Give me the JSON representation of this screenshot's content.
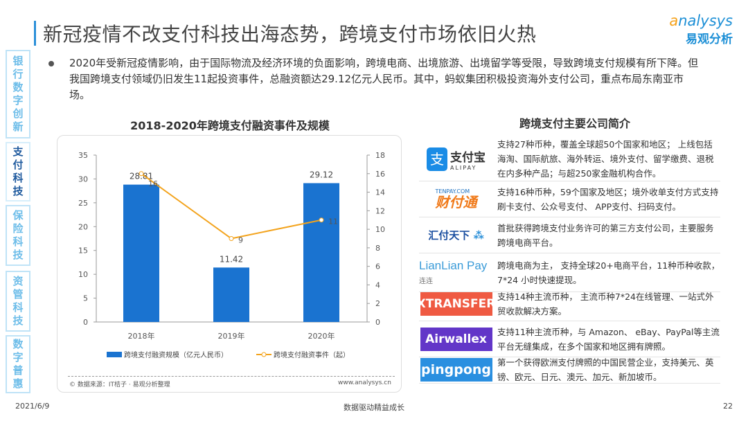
{
  "title": "新冠疫情不改支付科技出海态势，跨境支付市场依旧火热",
  "logo": {
    "en": "nalysys",
    "en_a": "a",
    "cn": "易观分析"
  },
  "sidebar": [
    {
      "label": "银行数字创新",
      "active": false
    },
    {
      "label": "支付科技",
      "active": true
    },
    {
      "label": "保险科技",
      "active": false
    },
    {
      "label": "资管科技",
      "active": false
    },
    {
      "label": "数字普惠",
      "active": false
    }
  ],
  "bullet": "2020年受新冠疫情影响，由于国际物流及经济环境的负面影响，跨境电商、出境旅游、出境留学等受限，导致跨境支付规模有所下降。但我国跨境支付领域仍旧发生11起投资事件，总融资额达29.12亿元人民币。其中，蚂蚁集团积极投资海外支付公司，重点布局东南亚市场。",
  "chart_data": {
    "type": "bar+line",
    "title": "2018-2020年跨境支付融资事件及规模",
    "categories": [
      "2018年",
      "2019年",
      "2020年"
    ],
    "series": [
      {
        "name": "跨境支付融资规模（亿元人民币）",
        "type": "bar",
        "axis": "left",
        "values": [
          28.81,
          11.42,
          29.12
        ],
        "labels": [
          "28.81",
          "11.42",
          "29.12"
        ],
        "color": "#1a73d0"
      },
      {
        "name": "跨境支付融资事件（起）",
        "type": "line",
        "axis": "right",
        "values": [
          16,
          9,
          11
        ],
        "labels": [
          "16",
          "9",
          "11"
        ],
        "color": "#f3a31c"
      }
    ],
    "ylim_left": [
      0,
      35
    ],
    "yticks_left": [
      "0",
      "5",
      "10",
      "15",
      "20",
      "25",
      "30",
      "35"
    ],
    "ylim_right": [
      0,
      18
    ],
    "yticks_right": [
      "0",
      "2",
      "4",
      "6",
      "8",
      "10",
      "12",
      "14",
      "16",
      "18"
    ],
    "legend": "bottom",
    "grid": false,
    "source": "© 数据来源：IT桔子 · 易观分析整理",
    "website": "www.analysys.cn"
  },
  "companies_title": "跨境支付主要公司简介",
  "companies": [
    {
      "name": "支付宝",
      "sub": "ALIPAY",
      "desc": "支持27种币种，覆盖全球超50个国家和地区； 上线包括海淘、国际航旅、海外转运、境外支付、留学缴费、退税在内多种产品；与超250家金融机构合作。"
    },
    {
      "name": "财付通",
      "sub": "TENPAY.COM",
      "desc": "支持16种币种，59个国家及地区；境外收单支付方式支持刷卡支付、公众号支付、 APP支付、扫码支付。"
    },
    {
      "name": "汇付天下",
      "desc": "首批获得跨境支付业务许可的第三方支付公司，主要服务跨境电商平台。"
    },
    {
      "name": "LianLian Pay",
      "sub": "连连",
      "desc": "跨境电商为主， 支持全球20+电商平台，11种币种收款，7*24 小时快速提现。"
    },
    {
      "name": "XTRANSFER",
      "color": "#ef5a42",
      "desc": "支持14种主流币种， 主流币种7*24在线管理、一站式外贸收款解决方案。"
    },
    {
      "name": "Airwallex",
      "color": "#6236c8",
      "desc": "支持11种主流币种，与 Amazon、 eBay、PayPal等主流平台无缝集成，在多个国家和地区拥有牌照。"
    },
    {
      "name": "pingpong",
      "color": "#2a8fe0",
      "desc": "第一个获得欧洲支付牌照的中国民营企业，支持美元、英镑、欧元、日元、澳元、加元、新加坡币。"
    }
  ],
  "footer": {
    "date": "2021/6/9",
    "slogan": "数据驱动精益成长",
    "page": "22"
  }
}
